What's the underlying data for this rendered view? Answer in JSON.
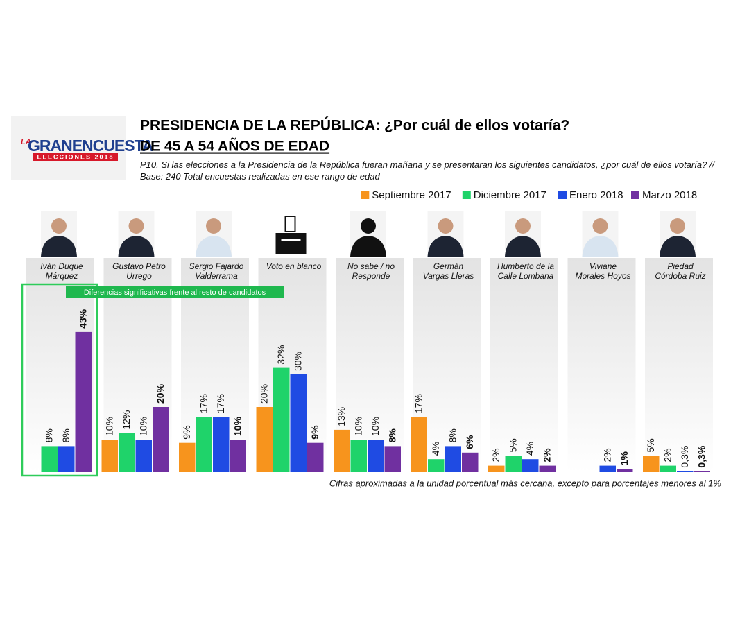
{
  "logo": {
    "prefix": "LA",
    "name": "GRANENCUESTA",
    "tagline": "ELECCIONES 2018"
  },
  "chart_data": {
    "type": "bar",
    "title": "PRESIDENCIA DE LA REPÚBLICA: ¿Por cuál de ellos votaría?",
    "subtitle": "DE 45 A 54 AÑOS DE EDAD",
    "question": "P10. Si las elecciones a la Presidencia de la República fueran mañana y se presentaran los siguientes candidatos, ¿por cuál de ellos votaría?  // Base: 240 Total encuestas realizadas en ese rango de edad",
    "annotation": "Diferencias significativas frente al resto de candidatos",
    "footnote": "Cifras aproximadas a la unidad porcentual más cercana, excepto para porcentajes menores al 1%",
    "categories": [
      "Iván Duque Márquez",
      "Gustavo Petro Urrego",
      "Sergio Fajardo Valderrama",
      "Voto en blanco",
      "No sabe / no Responde",
      "Germán Vargas Lleras",
      "Humberto de la Calle Lombana",
      "Viviane Morales Hoyos",
      "Piedad Córdoba Ruiz"
    ],
    "series": [
      {
        "name": "Septiembre 2017",
        "color": "#f7941d",
        "values": [
          null,
          10,
          9,
          20,
          13,
          17,
          2,
          null,
          5
        ],
        "value_labels": [
          null,
          "10%",
          "9%",
          "20%",
          "13%",
          "17%",
          "2%",
          null,
          "5%"
        ]
      },
      {
        "name": "Diciembre 2017",
        "color": "#1fd36a",
        "values": [
          8,
          12,
          17,
          32,
          10,
          4,
          5,
          null,
          2
        ],
        "value_labels": [
          "8%",
          "12%",
          "17%",
          "32%",
          "10%",
          "4%",
          "5%",
          null,
          "2%"
        ]
      },
      {
        "name": "Enero 2018",
        "color": "#1f4be3",
        "values": [
          8,
          10,
          17,
          30,
          10,
          8,
          4,
          2,
          0.3
        ],
        "value_labels": [
          "8%",
          "10%",
          "17%",
          "30%",
          "10%",
          "8%",
          "4%",
          "2%",
          "0,3%"
        ]
      },
      {
        "name": "Marzo 2018",
        "color": "#7030a0",
        "values": [
          43,
          20,
          10,
          9,
          8,
          6,
          2,
          1,
          0.3
        ],
        "value_labels": [
          "43%",
          "20%",
          "10%",
          "9%",
          "8%",
          "6%",
          "2%",
          "1%",
          "0,3%"
        ]
      }
    ],
    "legend": "top-right"
  }
}
